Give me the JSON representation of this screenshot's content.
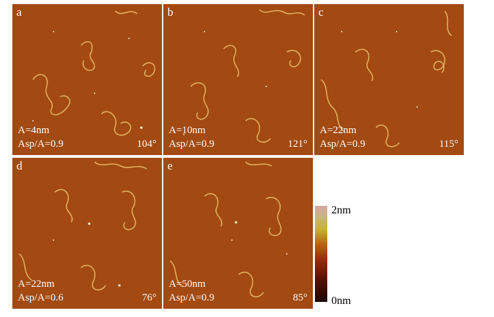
{
  "panels": [
    {
      "letter": "a",
      "amplitude": "A=4nm",
      "ratio": "Asp/A=0.9",
      "angle": "104°"
    },
    {
      "letter": "b",
      "amplitude": "A=10nm",
      "ratio": "Asp/A=0.9",
      "angle": "121°"
    },
    {
      "letter": "c",
      "amplitude": "A=22nm",
      "ratio": "Asp/A=0.9",
      "angle": "115°"
    },
    {
      "letter": "d",
      "amplitude": "A=22nm",
      "ratio": "Asp/A=0.6",
      "angle": "76°"
    },
    {
      "letter": "e",
      "amplitude": "A=50nm",
      "ratio": "Asp/A=0.9",
      "angle": "85°"
    }
  ],
  "colorbar": {
    "max_label": "2nm",
    "min_label": "0nm"
  },
  "colors": {
    "substrate": "#a24a12",
    "strand": "#e2b060",
    "label": "#ffffff"
  }
}
